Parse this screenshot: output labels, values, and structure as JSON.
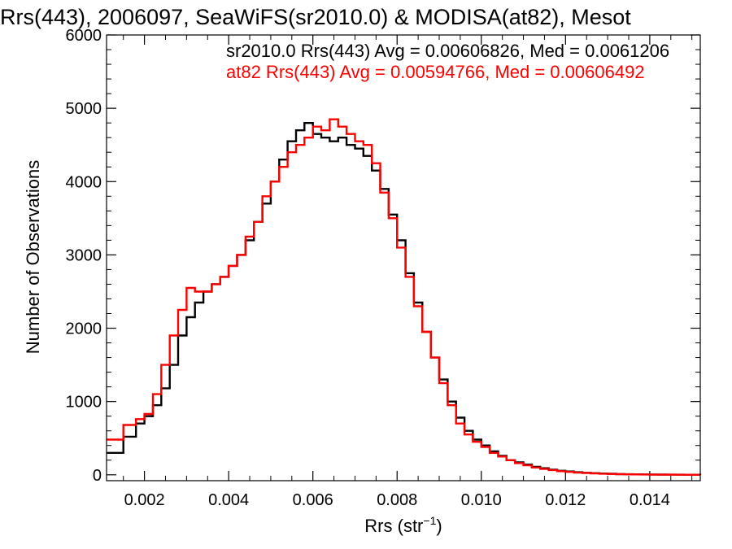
{
  "chart_data": {
    "type": "line",
    "title": "Rrs(443), 2006097, SeaWiFS(sr2010.0) & MODISA(at82), Mesot",
    "xlabel_main": "Rrs (str",
    "xlabel_sup": "−1",
    "xlabel_close": ")",
    "ylabel": "Number of Observations",
    "xlim": [
      0.0011,
      0.0152
    ],
    "ylim": [
      -80,
      6000
    ],
    "x_ticks": [
      {
        "value": 0.002,
        "label": "0.002"
      },
      {
        "value": 0.004,
        "label": "0.004"
      },
      {
        "value": 0.006,
        "label": "0.006"
      },
      {
        "value": 0.008,
        "label": "0.008"
      },
      {
        "value": 0.01,
        "label": "0.010"
      },
      {
        "value": 0.012,
        "label": "0.012"
      },
      {
        "value": 0.014,
        "label": "0.014"
      }
    ],
    "y_ticks": [
      {
        "value": 0,
        "label": "0"
      },
      {
        "value": 1000,
        "label": "1000"
      },
      {
        "value": 2000,
        "label": "2000"
      },
      {
        "value": 3000,
        "label": "3000"
      },
      {
        "value": 4000,
        "label": "4000"
      },
      {
        "value": 5000,
        "label": "5000"
      },
      {
        "value": 6000,
        "label": "6000"
      }
    ],
    "legend_placement": "top-right",
    "series": [
      {
        "name": "sr2010.0 Rrs(443) Avg = 0.00606826, Med = 0.0061206",
        "color": "#000000",
        "x": [
          0.0011,
          0.0015,
          0.0018,
          0.002,
          0.0022,
          0.0024,
          0.0026,
          0.0028,
          0.003,
          0.0032,
          0.0034,
          0.0036,
          0.0038,
          0.004,
          0.0042,
          0.0044,
          0.0046,
          0.0048,
          0.005,
          0.0052,
          0.0054,
          0.0056,
          0.0058,
          0.006,
          0.0062,
          0.0064,
          0.0066,
          0.0068,
          0.007,
          0.0072,
          0.0074,
          0.0076,
          0.0078,
          0.008,
          0.0082,
          0.0084,
          0.0086,
          0.0088,
          0.009,
          0.0092,
          0.0094,
          0.0096,
          0.0098,
          0.01,
          0.0102,
          0.0104,
          0.0106,
          0.0108,
          0.011,
          0.0112,
          0.0114,
          0.0116,
          0.0118,
          0.012,
          0.0122,
          0.0124,
          0.0126,
          0.0128,
          0.013,
          0.0132,
          0.0134,
          0.0136,
          0.0138,
          0.014,
          0.0142,
          0.0144,
          0.0146,
          0.0148,
          0.015,
          0.0152
        ],
        "values": [
          300,
          520,
          700,
          800,
          950,
          1180,
          1500,
          1900,
          2150,
          2350,
          2500,
          2600,
          2700,
          2850,
          3000,
          3200,
          3450,
          3700,
          4000,
          4300,
          4550,
          4700,
          4800,
          4650,
          4600,
          4550,
          4600,
          4500,
          4450,
          4350,
          4150,
          3900,
          3550,
          3200,
          2750,
          2350,
          1950,
          1600,
          1300,
          1000,
          780,
          600,
          480,
          400,
          320,
          260,
          200,
          170,
          140,
          110,
          90,
          70,
          55,
          45,
          35,
          28,
          22,
          18,
          14,
          10,
          8,
          6,
          5,
          4,
          3,
          2,
          2,
          1,
          1,
          0
        ]
      },
      {
        "name": "at82 Rrs(443) Avg = 0.00594766, Med = 0.00606492",
        "color": "#ff0000",
        "x": [
          0.0011,
          0.0015,
          0.0018,
          0.002,
          0.0022,
          0.0024,
          0.0026,
          0.0028,
          0.003,
          0.0032,
          0.0034,
          0.0036,
          0.0038,
          0.004,
          0.0042,
          0.0044,
          0.0046,
          0.0048,
          0.005,
          0.0052,
          0.0054,
          0.0056,
          0.0058,
          0.006,
          0.0062,
          0.0064,
          0.0066,
          0.0068,
          0.007,
          0.0072,
          0.0074,
          0.0076,
          0.0078,
          0.008,
          0.0082,
          0.0084,
          0.0086,
          0.0088,
          0.009,
          0.0092,
          0.0094,
          0.0096,
          0.0098,
          0.01,
          0.0102,
          0.0104,
          0.0106,
          0.0108,
          0.011,
          0.0112,
          0.0114,
          0.0116,
          0.0118,
          0.012,
          0.0122,
          0.0124,
          0.0126,
          0.0128,
          0.013,
          0.0132,
          0.0134,
          0.0136,
          0.0138,
          0.014,
          0.0142,
          0.0144,
          0.0146,
          0.0148,
          0.015,
          0.0152
        ],
        "values": [
          480,
          680,
          760,
          830,
          1100,
          1500,
          1900,
          2250,
          2550,
          2500,
          2500,
          2600,
          2700,
          2850,
          3000,
          3250,
          3450,
          3800,
          4000,
          4200,
          4400,
          4500,
          4600,
          4750,
          4700,
          4850,
          4750,
          4650,
          4550,
          4500,
          4250,
          3850,
          3500,
          3100,
          2700,
          2300,
          1950,
          1600,
          1250,
          950,
          700,
          550,
          450,
          380,
          300,
          250,
          200,
          160,
          130,
          100,
          80,
          65,
          50,
          40,
          30,
          25,
          20,
          15,
          12,
          9,
          7,
          5,
          4,
          3,
          2,
          2,
          1,
          1,
          0,
          0
        ]
      }
    ]
  }
}
